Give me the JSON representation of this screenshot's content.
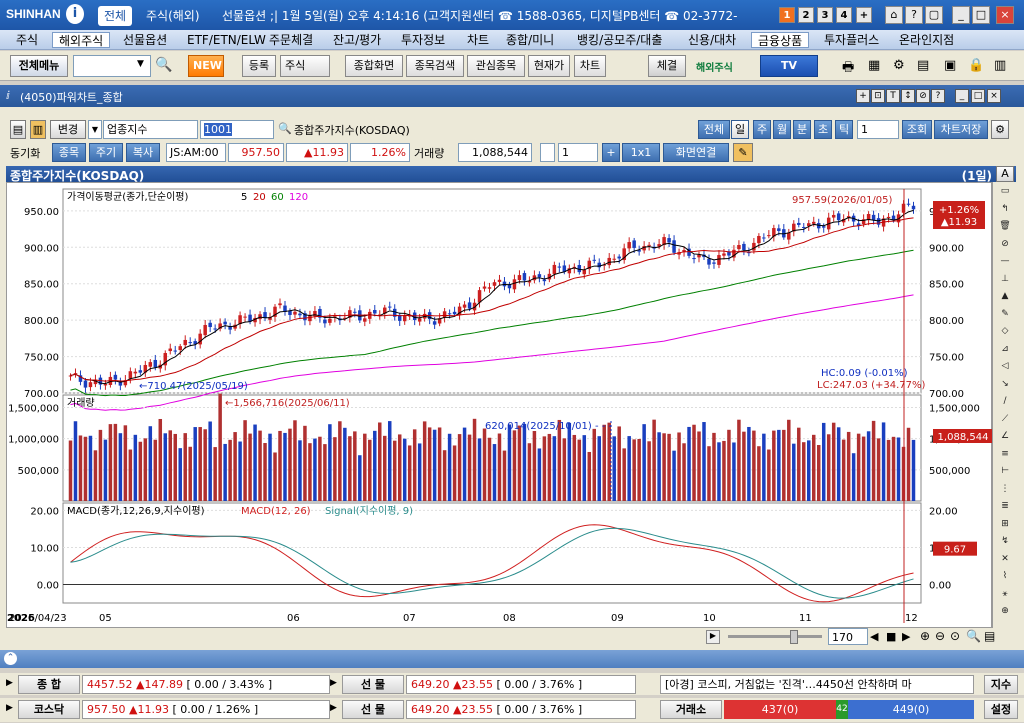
{
  "titlebar": {
    "logo": "SHINHAN",
    "logo_mark": "i",
    "tabs": [
      "전체",
      "주식(해외)"
    ],
    "text": "선물옵션 ;| 1월 5일(월) 오후 4:14:16 (고객지원센터 ☎ 1588-0365, 디지털PB센터 ☎ 02-3772-",
    "page_buttons": [
      "1",
      "2",
      "3",
      "4"
    ],
    "plus": "+",
    "window_buttons": [
      "⌂",
      "?",
      "▢",
      "_",
      "□",
      "×"
    ]
  },
  "menu": [
    "주식",
    "해외주식",
    "선물옵션",
    "ETF/ETN/ELW",
    "주문체결",
    "잔고/평가",
    "투자정보",
    "차트",
    "종합/미니",
    "뱅킹/공모주/대출",
    "신용/대차",
    "금융상품",
    "투자플러스",
    "온라인지점"
  ],
  "toolbar": {
    "all_menu": "전체메뉴",
    "new": "NEW",
    "register": "등록",
    "type": "주식",
    "buttons": [
      "종합화면",
      "종목검색",
      "관심종목",
      "현재가",
      "차트"
    ],
    "settle": "체결",
    "overseas": "해외주식",
    "tv": "TV"
  },
  "window": {
    "title": "(4050)파워차트_종합",
    "controls": [
      "+",
      "⊡",
      "T",
      "↕",
      "⊘",
      "?",
      "_",
      "□",
      "×"
    ]
  },
  "row1": {
    "change": "변경",
    "market": "업종지수",
    "code": "1001",
    "name": "종합주가지수(KOSDAQ)",
    "periods": [
      "전체",
      "일",
      "주",
      "월",
      "분",
      "초",
      "틱"
    ],
    "period_count": "1",
    "query": "조회",
    "save": "차트저장"
  },
  "row2": {
    "sync": "동기화",
    "tabs": [
      "종목",
      "주기",
      "복사"
    ],
    "time": "JS:AM:00",
    "price": "957.50",
    "change": "▲11.93",
    "rate": "1.26%",
    "volume_label": "거래량",
    "volume": "1,088,544",
    "count": "1",
    "unit": "1x1",
    "link": "화면연결"
  },
  "chart_header": {
    "name": "종합주가지수(KOSDAQ)",
    "period": "(1일)",
    "corner": "A"
  },
  "chart_data": [
    {
      "type": "candlestick",
      "title": "가격이동평균(종가,단순이평) 5 20 60 120",
      "legend": [
        "5",
        "20",
        "60",
        "120"
      ],
      "colors": {
        "up": "#cc2020",
        "down": "#1a3fbf",
        "ma5": "#000000",
        "ma20": "#c00000",
        "ma60": "#008000",
        "ma120": "#e000e0"
      },
      "ylim": [
        700,
        980
      ],
      "yticks": [
        "950.00",
        "900.00",
        "850.00",
        "800.00",
        "750.00",
        "700.00"
      ],
      "annotations": [
        "957.59(2026/01/05)",
        "710.47(2025/05/19)",
        "HC:0.09 (-0.01%)",
        "LC:247.03 (+34.77%)"
      ],
      "last_badge": [
        "+1.26%",
        "▲11.93"
      ],
      "x": [
        "2025/04/23",
        "05",
        "06",
        "07",
        "08",
        "09",
        "10",
        "11",
        "12",
        "2026"
      ],
      "close_path": [
        720,
        712,
        730,
        760,
        790,
        800,
        815,
        802,
        805,
        812,
        800,
        810,
        850,
        855,
        870,
        875,
        900,
        905,
        880,
        895,
        920,
        930,
        940,
        935,
        957
      ]
    },
    {
      "type": "bar",
      "title": "거래량",
      "ylim": [
        0,
        1700000
      ],
      "yticks": [
        "1,500,000",
        "1,000,000",
        "500,000"
      ],
      "annotations": [
        "1,566,716(2025/06/11)",
        "620,014(2025/10/01)"
      ],
      "last_value": "1,088,544"
    },
    {
      "type": "line",
      "title": "MACD(종가,12,26,9,지수이평)",
      "series": [
        {
          "name": "MACD(12, 26)",
          "color": "#d02020"
        },
        {
          "name": "Signal(지수이평, 9)",
          "color": "#2a8c8c"
        }
      ],
      "ylim": [
        -5,
        22
      ],
      "yticks": [
        "20.00",
        "10.00",
        "0.00"
      ],
      "last_value": "9.67",
      "x_labels": [
        "2025/04/23",
        "05",
        "06",
        "07",
        "08",
        "09",
        "10",
        "11",
        "12",
        "2026"
      ]
    }
  ],
  "scroll": {
    "count": "170"
  },
  "ticker": {
    "row1": {
      "label": "종 합",
      "value": "4457.52",
      "change": "▲147.89",
      "rate": "[ 0.00 / 3.43% ]",
      "fut_label": "선 물",
      "fut_value": "649.20",
      "fut_change": "▲23.55",
      "fut_rate": "[ 0.00 / 3.76% ]",
      "news": "[아경] 코스피, 거침없는 '진격'…4450선 안착하며 마",
      "btn": "지수"
    },
    "row2": {
      "label": "코스닥",
      "value": "957.50",
      "change": "▲11.93",
      "rate": "[ 0.00 / 1.26% ]",
      "fut_label": "선 물",
      "fut_value": "649.20",
      "fut_change": "▲23.55",
      "fut_rate": "[ 0.00 / 3.76% ]",
      "exch": "거래소",
      "up": "437(0)",
      "mid": "42",
      "down": "449(0)",
      "btn": "설정"
    }
  }
}
